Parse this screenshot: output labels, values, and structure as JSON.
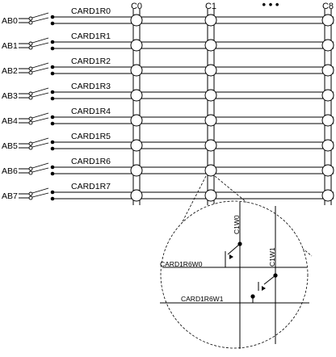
{
  "bus_lines": [
    {
      "bus": "AB0",
      "card_row": "CARD1R0"
    },
    {
      "bus": "AB1",
      "card_row": "CARD1R1"
    },
    {
      "bus": "AB2",
      "card_row": "CARD1R2"
    },
    {
      "bus": "AB3",
      "card_row": "CARD1R3"
    },
    {
      "bus": "AB4",
      "card_row": "CARD1R4"
    },
    {
      "bus": "AB5",
      "card_row": "CARD1R5"
    },
    {
      "bus": "AB6",
      "card_row": "CARD1R6"
    },
    {
      "bus": "AB7",
      "card_row": "CARD1R7"
    }
  ],
  "columns": [
    {
      "label": "C0"
    },
    {
      "label": "C1"
    },
    {
      "label": "C8"
    }
  ],
  "column_ellipsis": "• • •",
  "zoom_detail": {
    "source_row": "CARD1R6",
    "source_column": "C1",
    "column_wires": [
      "C1W0",
      "C1W1"
    ],
    "row_wires": [
      "CARD1R6W0",
      "CARD1R6W1"
    ]
  },
  "colors": {
    "line": "#000000",
    "background": "#ffffff"
  }
}
